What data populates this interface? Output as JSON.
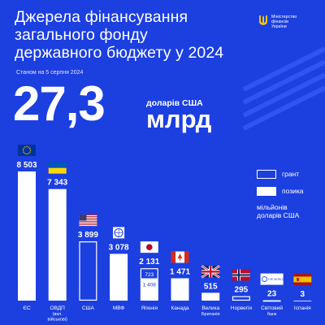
{
  "header": {
    "title_lines": [
      "Джерела фінансування",
      "загального фонду",
      "державного бюджету у 2024"
    ],
    "as_of": "Станом на 5 серпня 2024",
    "total_value": "27,3",
    "total_currency": "доларів США",
    "total_magnitude": "млрд"
  },
  "logo": {
    "text_lines": [
      "Міністерство",
      "фінансів",
      "України"
    ],
    "icon": "trident-icon"
  },
  "legend": {
    "grant": "грант",
    "loan": "позика",
    "unit_lines": [
      "мільйонів",
      "доларів США"
    ]
  },
  "colors": {
    "background": "#1c3fe0",
    "foreground": "#ffffff"
  },
  "chart_data": {
    "type": "bar",
    "unit": "мільйонів доларів США",
    "series_types": [
      "позика",
      "грант"
    ],
    "categories": [
      {
        "label_lines": [
          "ЄС"
        ],
        "total": 8503,
        "loan": 8503,
        "grant": 0,
        "value_label": "8 503",
        "flag": "eu-flag-icon"
      },
      {
        "label_lines": [
          "ОВДП",
          "(вкл.",
          "військові)"
        ],
        "total": 7343,
        "loan": 7343,
        "grant": 0,
        "value_label": "7 343",
        "flag": "ukraine-flag-icon"
      },
      {
        "label_lines": [
          "США"
        ],
        "total": 3899,
        "loan": 0,
        "grant": 3899,
        "value_label": "3 899",
        "flag": "usa-flag-icon"
      },
      {
        "label_lines": [
          "МВФ"
        ],
        "total": 3078,
        "loan": 3078,
        "grant": 0,
        "value_label": "3 078",
        "flag": "imf-logo-icon"
      },
      {
        "label_lines": [
          "Японія"
        ],
        "total": 2131,
        "loan": 1408,
        "grant": 723,
        "value_label": "2 131",
        "grant_label": "723",
        "loan_label": "1 408",
        "flag": "japan-flag-icon"
      },
      {
        "label_lines": [
          "Канада"
        ],
        "total": 1471,
        "loan": 1471,
        "grant": 0,
        "value_label": "1 471",
        "flag": "canada-flag-icon"
      },
      {
        "label_lines": [
          "Велика",
          "Британія"
        ],
        "total": 515,
        "loan": 515,
        "grant": 0,
        "value_label": "515",
        "flag": "uk-flag-icon"
      },
      {
        "label_lines": [
          "Норвегія"
        ],
        "total": 295,
        "loan": 0,
        "grant": 295,
        "value_label": "295",
        "flag": "norway-flag-icon"
      },
      {
        "label_lines": [
          "Світовий",
          "банк"
        ],
        "total": 23,
        "loan": 0,
        "grant": 23,
        "value_label": "23",
        "flag": "world-bank-logo-icon",
        "flag_text": "THE WORLD BANK"
      },
      {
        "label_lines": [
          "Іспанія"
        ],
        "total": 3,
        "loan": 3,
        "grant": 0,
        "value_label": "3",
        "flag": "spain-flag-icon"
      }
    ],
    "ylim": [
      0,
      8503
    ]
  }
}
